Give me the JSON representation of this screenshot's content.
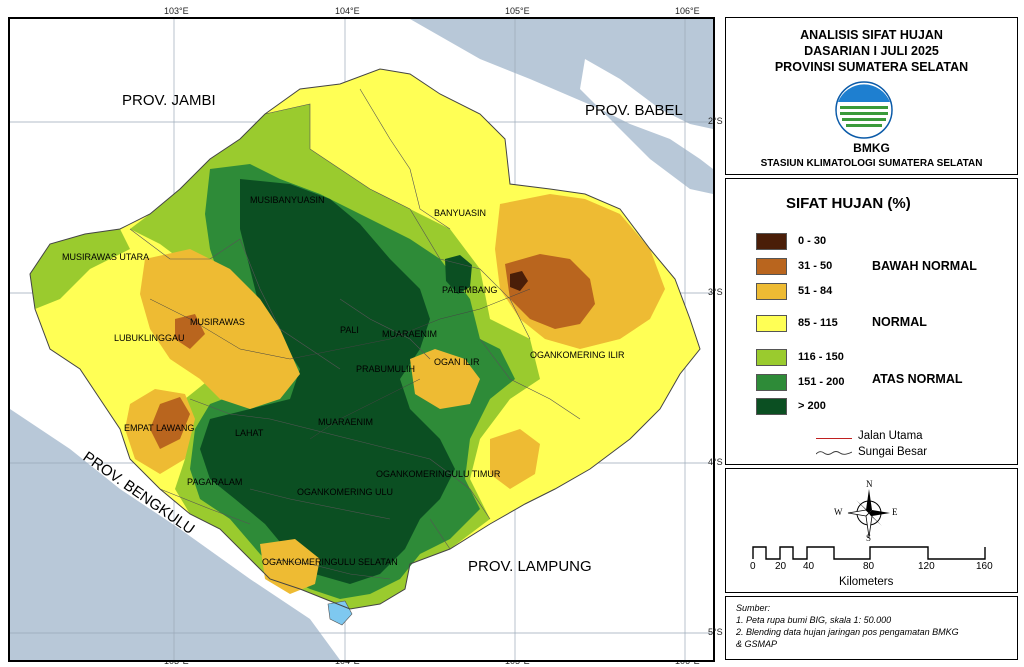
{
  "map": {
    "top_ticks": [
      "103°E",
      "104°E",
      "105°E",
      "106°E"
    ],
    "bottom_ticks": [
      "103°E",
      "104°E",
      "105°E",
      "106°E"
    ],
    "right_ticks": [
      "2°S",
      "3°S",
      "4°S",
      "5°S"
    ],
    "province_labels": [
      "PROV. JAMBI",
      "PROV. BABEL",
      "PROV. BENGKULU",
      "PROV. LAMPUNG"
    ],
    "region_labels": [
      "MUSIBANYUASIN",
      "BANYUASIN",
      "MUSIRAWAS UTARA",
      "PALEMBANG",
      "MUSIRAWAS",
      "LUBUKLINGGAU",
      "PALI",
      "MUARAENIM",
      "OGAN ILIR",
      "OGANKOMERING ILIR",
      "PRABUMULIH",
      "EMPAT LAWANG",
      "LAHAT",
      "MUARAENIM",
      "OGANKOMERINGULU TIMUR",
      "PAGARALAM",
      "OGANKOMERING ULU",
      "OGANKOMERINGULU SELATAN"
    ],
    "colors": {
      "sea": "#b8c8d8",
      "land_other": "#ffffff",
      "c0_30": "#4a1e08",
      "c31_50": "#b9651e",
      "c51_84": "#eebb33",
      "c85_115": "#ffff55",
      "c116_150": "#9acb2e",
      "c151_200": "#2e8b38",
      "c200": "#0b4f22",
      "lake": "#7ec8f0"
    }
  },
  "header": {
    "line1": "ANALISIS SIFAT HUJAN",
    "line2": "DASARIAN I JULI 2025",
    "line3": "PROVINSI SUMATERA SELATAN",
    "logo_text": "BMKG",
    "station": "STASIUN KLIMATOLOGI SUMATERA SELATAN"
  },
  "legend": {
    "title": "SIFAT HUJAN (%)",
    "classes": [
      {
        "label": "0 - 30",
        "color": "#4a1e08"
      },
      {
        "label": "31 - 50",
        "color": "#b9651e"
      },
      {
        "label": "51 - 84",
        "color": "#eebb33"
      },
      {
        "label": "85 - 115",
        "color": "#ffff55"
      },
      {
        "label": "116 - 150",
        "color": "#9acb2e"
      },
      {
        "label": "151 - 200",
        "color": "#2e8b38"
      },
      {
        "label": "> 200",
        "color": "#0b4f22"
      }
    ],
    "categories": [
      "BAWAH NORMAL",
      "NORMAL",
      "ATAS NORMAL"
    ],
    "road_label": "Jalan Utama",
    "river_label": "Sungai Besar"
  },
  "scale": {
    "compass": [
      "N",
      "E",
      "S",
      "W"
    ],
    "ticks": [
      "0",
      "20",
      "40",
      "80",
      "120",
      "160"
    ],
    "unit": "Kilometers"
  },
  "source": {
    "heading": "Sumber:",
    "line1": "1. Peta rupa bumi BIG, skala 1: 50.000",
    "line2": "2. Blending data hujan jaringan pos pengamatan BMKG",
    "line3": "& GSMAP"
  }
}
